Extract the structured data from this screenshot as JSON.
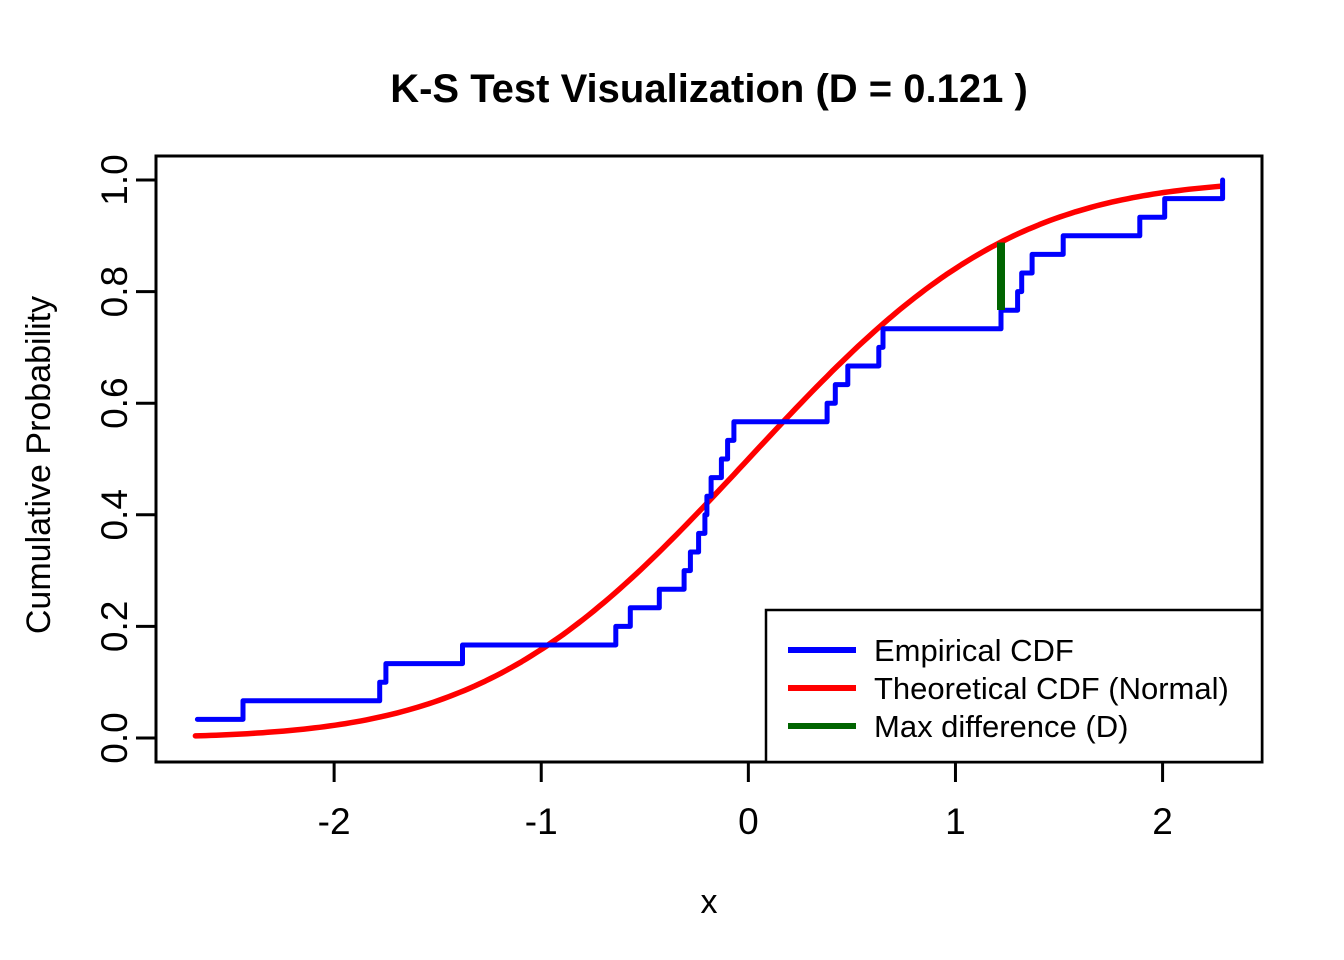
{
  "title": "K-S Test Visualization (D = 0.121 )",
  "colors": {
    "background": "#ffffff",
    "axis": "#000000",
    "empirical": "#0000ff",
    "theoretical": "#ff0000",
    "max_difference": "#006400"
  },
  "chart_data": {
    "type": "line",
    "title": "K-S Test Visualization (D = 0.121 )",
    "xlabel": "x",
    "ylabel": "Cumulative Probability",
    "xlim": [
      -2.86,
      2.48
    ],
    "ylim": [
      -0.043,
      1.043
    ],
    "x_ticks": [
      -2,
      -1,
      0,
      1,
      2
    ],
    "x_tick_labels": [
      "-2",
      "-1",
      "0",
      "1",
      "2"
    ],
    "y_ticks": [
      0.0,
      0.2,
      0.4,
      0.6,
      0.8,
      1.0
    ],
    "y_tick_labels": [
      "0.0",
      "0.2",
      "0.4",
      "0.6",
      "0.8",
      "1.0"
    ],
    "grid": false,
    "legend_position": "bottom-right",
    "ks_statistic": 0.121,
    "series": [
      {
        "name": "Empirical CDF",
        "type": "ecdf_step",
        "color": "#0000ff",
        "n": 30,
        "sorted_sample": [
          -2.66,
          -2.44,
          -1.78,
          -1.75,
          -1.38,
          -0.64,
          -0.57,
          -0.43,
          -0.31,
          -0.28,
          -0.24,
          -0.21,
          -0.2,
          -0.18,
          -0.13,
          -0.1,
          -0.07,
          0.38,
          0.42,
          0.48,
          0.63,
          0.65,
          1.22,
          1.3,
          1.32,
          1.37,
          1.52,
          1.89,
          2.01,
          2.29
        ]
      },
      {
        "name": "Theoretical CDF (Normal)",
        "type": "normal_cdf",
        "color": "#ff0000",
        "mean": 0,
        "sd": 1,
        "x_range": [
          -2.67,
          2.3
        ]
      },
      {
        "name": "Max difference (D)",
        "type": "vertical_segment",
        "color": "#006400",
        "x": 1.22,
        "y_from": 0.767,
        "y_to": 0.888,
        "D": 0.121
      }
    ]
  }
}
